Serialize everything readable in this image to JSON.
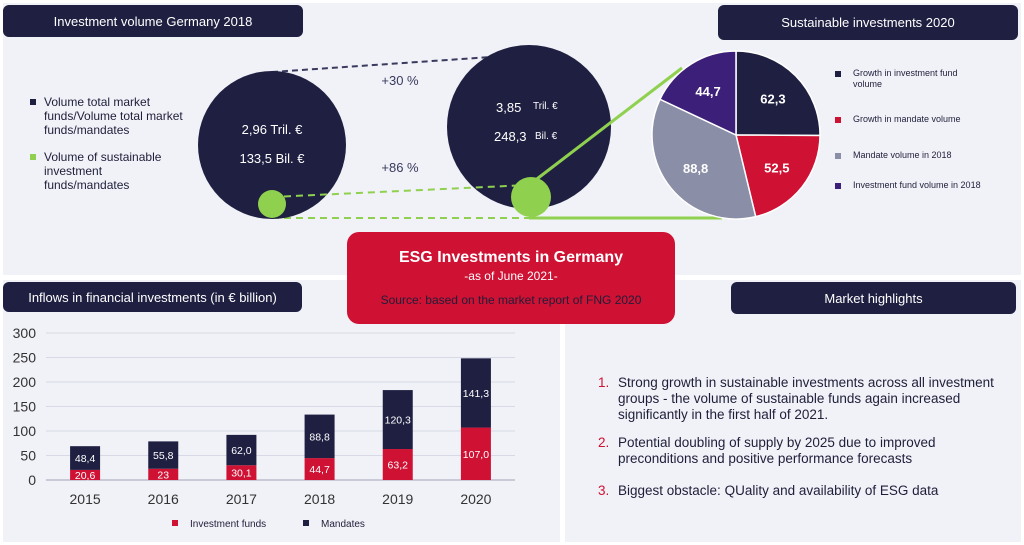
{
  "top_left": {
    "header": "Investment volume Germany 2018",
    "legend": [
      {
        "label": "Volume total market funds/Volume total market funds/mandates",
        "color": "#1f1f42"
      },
      {
        "label": "Volume of sustainable investment funds/mandates",
        "color": "#8fd14f"
      }
    ],
    "circle_2018": {
      "total": "2,96 Tril. €",
      "sustainable": "133,5 Bil.  €"
    },
    "circle_2020": {
      "total_value": "3,85",
      "total_unit": "Tril. €",
      "sustainable_value": "248,3",
      "sustainable_unit": "Bil.  €"
    },
    "growth_total": "+30 %",
    "growth_sustainable": "+86 %"
  },
  "top_right": {
    "header": "Sustainable investments 2020",
    "legend": [
      {
        "label": "Growth in investment fund volume",
        "color": "#1f1f42"
      },
      {
        "label": "Growth in mandate volume",
        "color": "#cf1133"
      },
      {
        "label": "Mandate volume in 2018",
        "color": "#8a8ea6"
      },
      {
        "label": "Investment fund volume in 2018",
        "color": "#3c1f78"
      }
    ]
  },
  "esg_box": {
    "title": "ESG Investments in Germany",
    "subtitle": "-as of June 2021-",
    "source": "Source: based on the market report of FNG 2020"
  },
  "bottom_left": {
    "header": "Inflows in financial investments (in € billion)"
  },
  "bottom_right": {
    "header": "Market highlights",
    "items": [
      {
        "num": "1.",
        "text": "Strong growth in sustainable investments across all investment groups - the volume of sustainable funds again increased significantly in the first half of 2021."
      },
      {
        "num": "2.",
        "text": "Potential doubling of supply by 2025 due to improved preconditions and positive performance forecasts"
      },
      {
        "num": "3.",
        "text": "Biggest obstacle: QUality and availability of ESG data"
      }
    ]
  },
  "chart_data": [
    {
      "type": "bar",
      "stacked": true,
      "title": "Inflows in financial investments (in € billion)",
      "categories": [
        "2015",
        "2016",
        "2017",
        "2018",
        "2019",
        "2020"
      ],
      "series": [
        {
          "name": "Investment funds",
          "color": "#cf1133",
          "values": [
            20.6,
            23,
            30.1,
            44.7,
            63.2,
            107.0
          ],
          "labels": [
            "20,6",
            "23",
            "30,1",
            "44,7",
            "63,2",
            "107,0"
          ]
        },
        {
          "name": "Mandates",
          "color": "#1f1f42",
          "values": [
            48.4,
            55.8,
            62.0,
            88.8,
            120.3,
            141.3
          ],
          "labels": [
            "48,4",
            "55,8",
            "62,0",
            "88,8",
            "120,3",
            "141,3"
          ]
        }
      ],
      "yticks": [
        "0",
        "50",
        "100",
        "150",
        "200",
        "250",
        "300"
      ],
      "ylim": [
        0,
        300
      ],
      "grid": true,
      "legend_position": "bottom"
    },
    {
      "type": "pie",
      "title": "Sustainable investments 2020",
      "slices": [
        {
          "label": "Growth in investment fund volume",
          "value": 62.3,
          "text": "62,3",
          "color": "#1f1f42"
        },
        {
          "label": "Growth in mandate volume",
          "value": 52.5,
          "text": "52,5",
          "color": "#cf1133"
        },
        {
          "label": "Mandate volume in 2018",
          "value": 88.8,
          "text": "88,8",
          "color": "#8a8ea6"
        },
        {
          "label": "Investment fund volume in 2018",
          "value": 44.7,
          "text": "44,7",
          "color": "#3c1f78"
        }
      ],
      "legend_position": "right"
    }
  ]
}
